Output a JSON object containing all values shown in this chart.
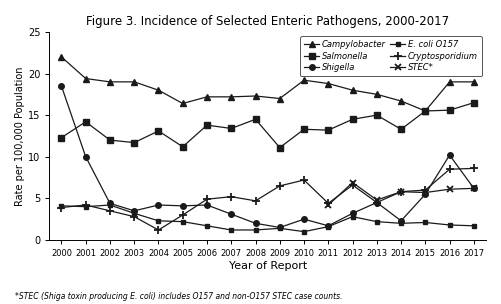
{
  "title": "Figure 3. Incidence of Selected Enteric Pathogens, 2000-2017",
  "xlabel": "Year of Report",
  "ylabel": "Rate per 100,000 Population",
  "footnote": "*STEC (Shiga toxin producing E. coli) includes O157 and non-O157 STEC case counts.",
  "years": [
    2000,
    2001,
    2002,
    2003,
    2004,
    2005,
    2006,
    2007,
    2008,
    2009,
    2010,
    2011,
    2012,
    2013,
    2014,
    2015,
    2016,
    2017
  ],
  "campylobacter": [
    22.0,
    19.4,
    19.0,
    19.0,
    18.0,
    16.4,
    17.2,
    17.2,
    17.3,
    17.0,
    19.2,
    18.8,
    18.0,
    17.5,
    16.7,
    15.5,
    19.0,
    19.0
  ],
  "salmonella": [
    12.3,
    14.2,
    12.0,
    11.7,
    13.1,
    11.2,
    13.8,
    13.4,
    14.5,
    11.1,
    13.3,
    13.2,
    14.5,
    15.0,
    13.3,
    15.5,
    15.6,
    16.5
  ],
  "shigella": [
    18.5,
    10.0,
    4.4,
    3.5,
    4.2,
    4.1,
    4.2,
    3.1,
    2.0,
    1.5,
    2.5,
    1.7,
    3.2,
    4.5,
    2.3,
    5.5,
    10.2,
    6.2
  ],
  "ecoli_o157": [
    4.1,
    4.0,
    4.2,
    3.2,
    2.3,
    2.2,
    1.7,
    1.2,
    1.2,
    1.4,
    1.0,
    1.6,
    2.8,
    2.2,
    2.0,
    2.1,
    1.8,
    1.7
  ],
  "crypto": [
    3.9,
    4.2,
    3.5,
    2.8,
    1.2,
    3.0,
    4.9,
    5.2,
    4.7,
    6.5,
    7.2,
    4.4,
    6.6,
    4.5,
    5.8,
    6.0,
    8.5,
    8.6
  ],
  "stec": [
    null,
    null,
    null,
    null,
    null,
    null,
    null,
    null,
    null,
    null,
    null,
    4.2,
    6.9,
    4.8,
    5.8,
    5.7,
    6.1,
    6.2
  ],
  "ylim": [
    0,
    25
  ],
  "yticks": [
    0,
    5,
    10,
    15,
    20,
    25
  ],
  "color_dark": "#1a1a1a",
  "background": "#ffffff"
}
